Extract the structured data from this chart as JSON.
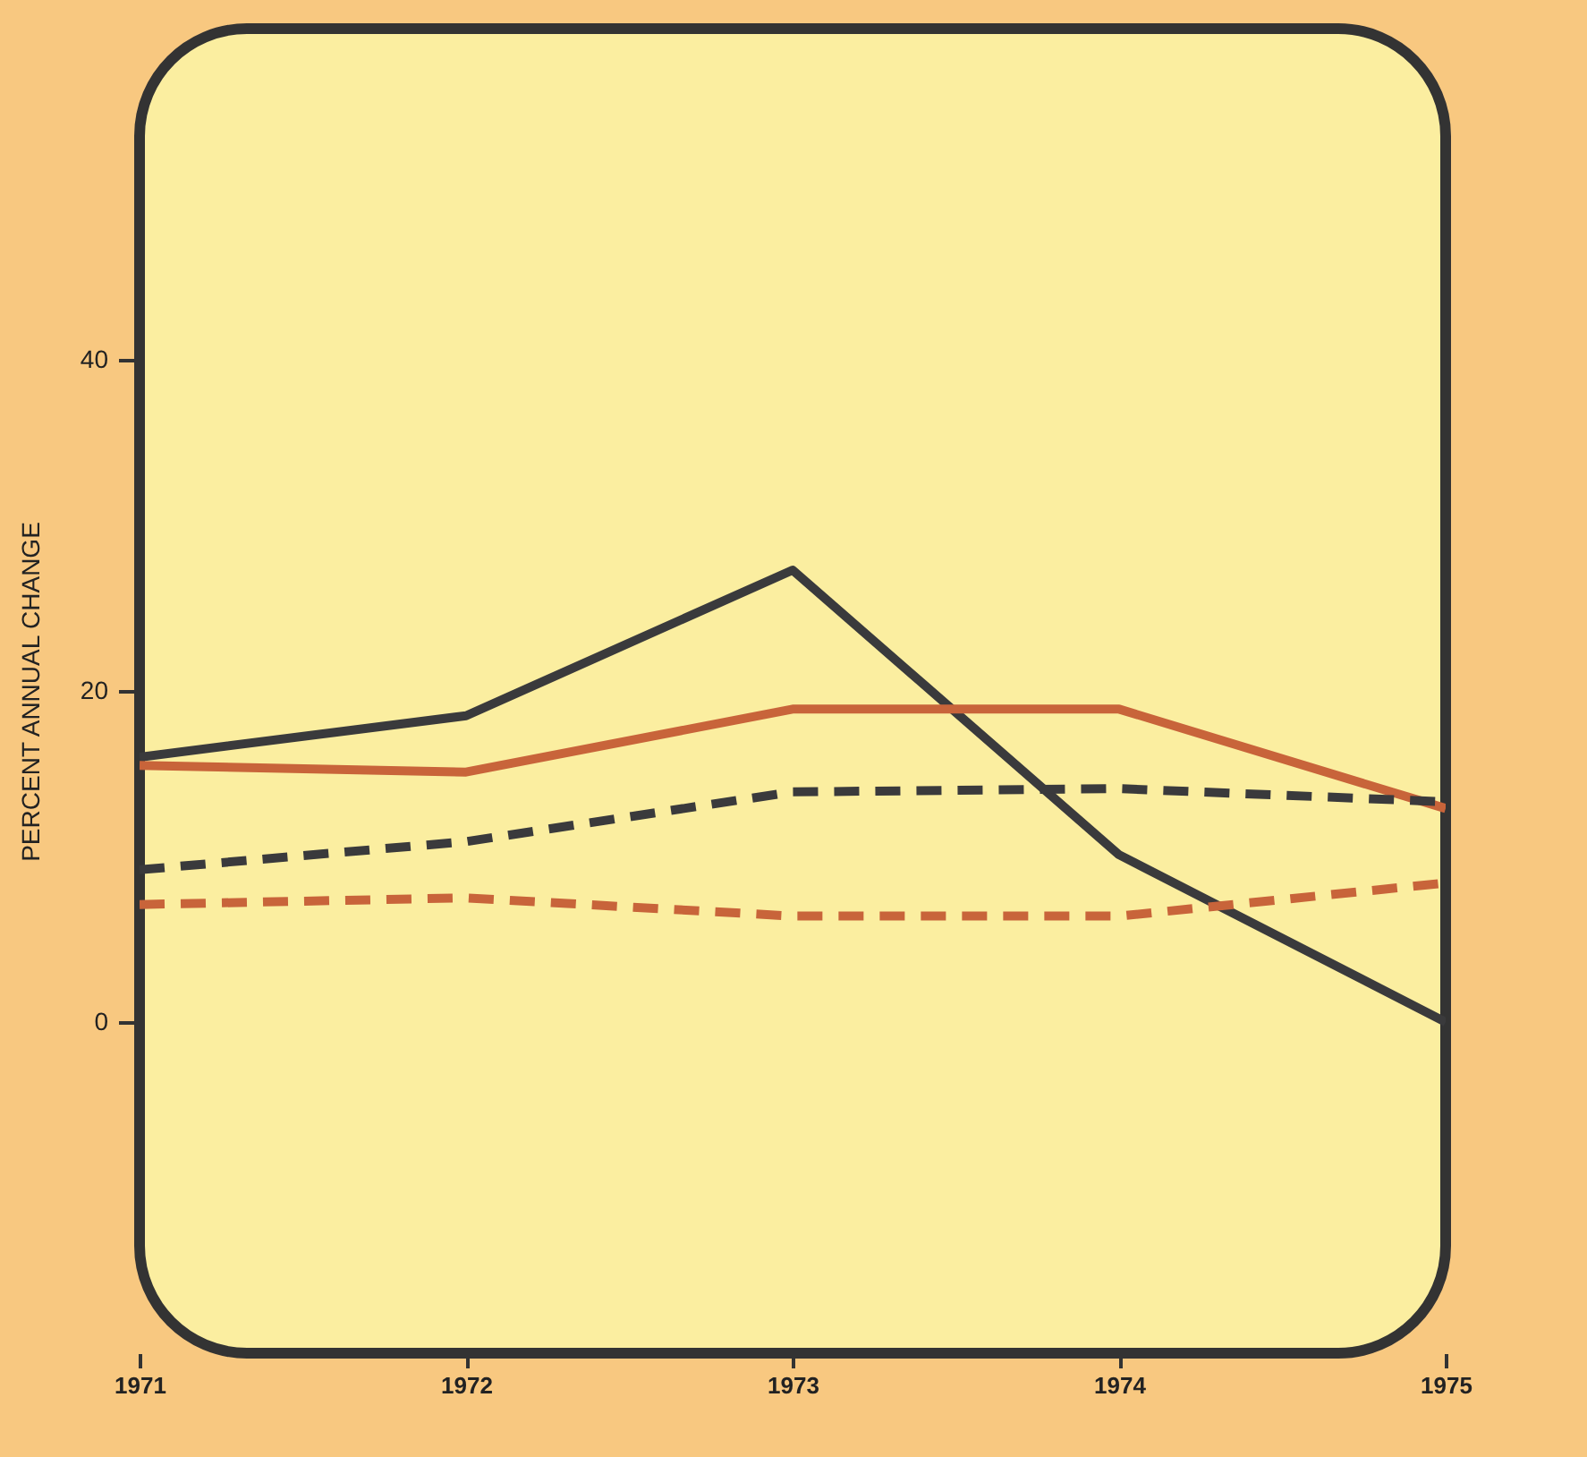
{
  "chart_data": {
    "type": "line",
    "ylabel": "PERCENT ANNUAL CHANGE",
    "x": [
      1971,
      1972,
      1973,
      1974,
      1975
    ],
    "xlim": [
      1971,
      1975
    ],
    "xticks": [
      1971,
      1972,
      1973,
      1974,
      1975
    ],
    "ylim": [
      -20,
      60
    ],
    "yticks": [
      0,
      20,
      40
    ],
    "grid": false,
    "series": [
      {
        "color": "#3a3a3c",
        "line_style": "solid",
        "values": [
          16,
          18.5,
          27.3,
          10.1,
          0
        ]
      },
      {
        "color": "#c8643a",
        "line_style": "solid",
        "values": [
          15.5,
          15.1,
          18.9,
          18.9,
          12.9
        ]
      },
      {
        "color": "#3a3a3c",
        "line_style": "dashed",
        "values": [
          9.2,
          10.9,
          13.9,
          14.1,
          13.3
        ]
      },
      {
        "color": "#c8643a",
        "line_style": "dashed",
        "values": [
          7.1,
          7.5,
          6.4,
          6.4,
          8.4
        ]
      }
    ]
  }
}
